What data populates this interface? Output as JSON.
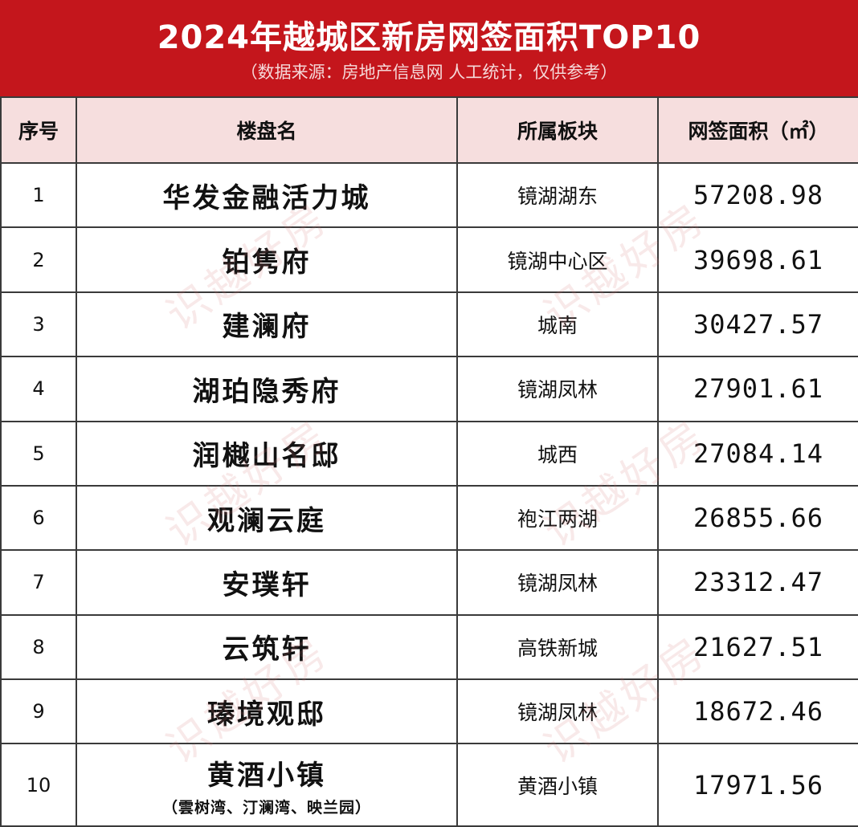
{
  "header": {
    "title": "2024年越城区新房网签面积TOP10",
    "subtitle": "（数据来源：房地产信息网  人工统计，仅供参考）"
  },
  "columns": {
    "rank": "序号",
    "name": "楼盘名",
    "block": "所属板块",
    "area": "网签面积（㎡）"
  },
  "rows": [
    {
      "rank": "1",
      "name": "华发金融活力城",
      "block": "镜湖湖东",
      "area": "57208.98"
    },
    {
      "rank": "2",
      "name": "铂隽府",
      "block": "镜湖中心区",
      "area": "39698.61"
    },
    {
      "rank": "3",
      "name": "建澜府",
      "block": "城南",
      "area": "30427.57"
    },
    {
      "rank": "4",
      "name": "湖珀隐秀府",
      "block": "镜湖凤林",
      "area": "27901.61"
    },
    {
      "rank": "5",
      "name": "润樾山名邸",
      "block": "城西",
      "area": "27084.14"
    },
    {
      "rank": "6",
      "name": "观澜云庭",
      "block": "袍江两湖",
      "area": "26855.66"
    },
    {
      "rank": "7",
      "name": "安璞轩",
      "block": "镜湖凤林",
      "area": "23312.47"
    },
    {
      "rank": "8",
      "name": "云筑轩",
      "block": "高铁新城",
      "area": "21627.51"
    },
    {
      "rank": "9",
      "name": "瑧境观邸",
      "block": "镜湖凤林",
      "area": "18672.46"
    },
    {
      "rank": "10",
      "name": "黄酒小镇",
      "name_sub": "（雲树湾、汀澜湾、映兰园）",
      "block": "黄酒小镇",
      "area": "17971.56"
    }
  ],
  "watermark": "识越好房",
  "colors": {
    "header_bg": "#c4161c",
    "column_header_bg": "#f6dede",
    "border": "#3a3a3a"
  }
}
